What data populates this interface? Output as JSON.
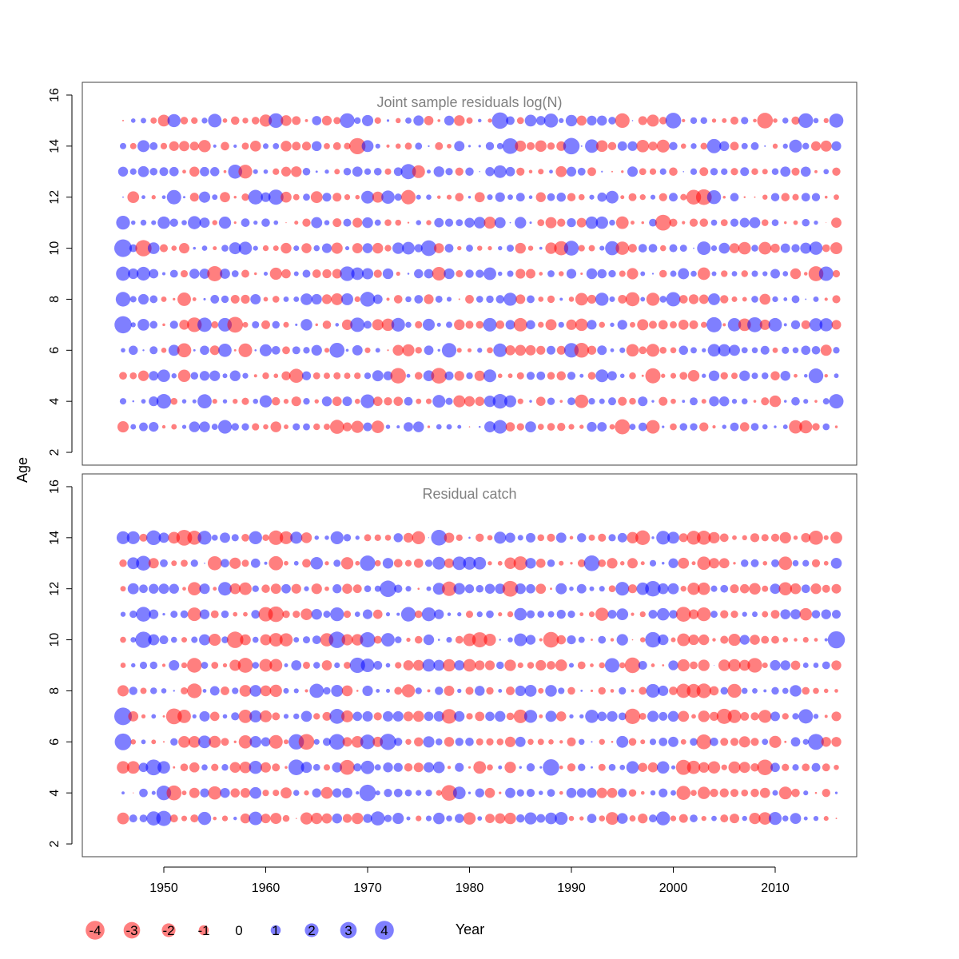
{
  "chart_data": {
    "type": "scatter",
    "subtype": "residual bubble plot",
    "xlabel": "Year",
    "ylabel": "Age",
    "xlim": [
      1942,
      2018
    ],
    "x_ticks": [
      1950,
      1960,
      1970,
      1980,
      1990,
      2000,
      2010
    ],
    "ylim": [
      1.5,
      16.5
    ],
    "y_ticks": [
      2,
      4,
      6,
      8,
      10,
      12,
      14,
      16
    ],
    "colors": {
      "positive": "#0000ff",
      "negative": "#ff0000",
      "opacity": 0.5
    },
    "panels": [
      {
        "title": "Joint sample residuals log(N)",
        "years": [
          1946,
          2016
        ],
        "ages": [
          3,
          4,
          5,
          6,
          7,
          8,
          9,
          10,
          11,
          12,
          13,
          14,
          15
        ],
        "sample_points": [
          {
            "year": 1946,
            "age": 10,
            "residual": 3.8
          },
          {
            "year": 1946,
            "age": 7,
            "residual": 3.6
          },
          {
            "year": 1946,
            "age": 8,
            "residual": 2.6
          },
          {
            "year": 1946,
            "age": 9,
            "residual": 2.4
          },
          {
            "year": 1946,
            "age": 11,
            "residual": 2.3
          },
          {
            "year": 1946,
            "age": 3,
            "residual": -1.5
          },
          {
            "year": 1948,
            "age": 10,
            "residual": -3.2
          },
          {
            "year": 1950,
            "age": 4,
            "residual": 2.6
          },
          {
            "year": 1952,
            "age": 6,
            "residual": -2.4
          },
          {
            "year": 1953,
            "age": 7,
            "residual": -2.6
          },
          {
            "year": 1955,
            "age": 9,
            "residual": -2.8
          },
          {
            "year": 1957,
            "age": 7,
            "residual": -3.0
          },
          {
            "year": 1958,
            "age": 13,
            "residual": -2.3
          },
          {
            "year": 1959,
            "age": 12,
            "residual": 2.6
          },
          {
            "year": 1961,
            "age": 12,
            "residual": 2.8
          },
          {
            "year": 1963,
            "age": 5,
            "residual": -2.4
          },
          {
            "year": 1967,
            "age": 6,
            "residual": 2.7
          },
          {
            "year": 1967,
            "age": 3,
            "residual": -2.4
          },
          {
            "year": 1968,
            "age": 9,
            "residual": 2.6
          },
          {
            "year": 1968,
            "age": 15,
            "residual": 2.6
          },
          {
            "year": 1969,
            "age": 14,
            "residual": -3.2
          },
          {
            "year": 1974,
            "age": 13,
            "residual": 2.8
          },
          {
            "year": 1977,
            "age": 5,
            "residual": -3.0
          },
          {
            "year": 1983,
            "age": 4,
            "residual": 2.6
          },
          {
            "year": 1984,
            "age": 14,
            "residual": 3.0
          },
          {
            "year": 1992,
            "age": 14,
            "residual": 2.2
          },
          {
            "year": 1998,
            "age": 5,
            "residual": -2.8
          },
          {
            "year": 2000,
            "age": 15,
            "residual": 3.0
          },
          {
            "year": 2003,
            "age": 12,
            "residual": -3.0
          },
          {
            "year": 2004,
            "age": 7,
            "residual": 2.8
          },
          {
            "year": 2009,
            "age": 15,
            "residual": -3.0
          },
          {
            "year": 2013,
            "age": 15,
            "residual": 2.6
          },
          {
            "year": 2014,
            "age": 5,
            "residual": 2.6
          },
          {
            "year": 2015,
            "age": 9,
            "residual": 2.5
          },
          {
            "year": 2016,
            "age": 4,
            "residual": 2.5
          },
          {
            "year": 2016,
            "age": 15,
            "residual": 2.4
          }
        ]
      },
      {
        "title": "Residual catch",
        "years": [
          1946,
          2016
        ],
        "ages": [
          3,
          4,
          5,
          6,
          7,
          8,
          9,
          10,
          11,
          12,
          13,
          14
        ],
        "sample_points": [
          {
            "year": 1946,
            "age": 7,
            "residual": 3.8
          },
          {
            "year": 1946,
            "age": 6,
            "residual": 3.4
          },
          {
            "year": 1946,
            "age": 14,
            "residual": 2.0
          },
          {
            "year": 1950,
            "age": 3,
            "residual": 2.8
          },
          {
            "year": 1950,
            "age": 4,
            "residual": 2.6
          },
          {
            "year": 1955,
            "age": 13,
            "residual": -2.4
          },
          {
            "year": 1962,
            "age": 14,
            "residual": -2.0
          },
          {
            "year": 1963,
            "age": 5,
            "residual": 3.0
          },
          {
            "year": 1964,
            "age": 6,
            "residual": -3.0
          },
          {
            "year": 1971,
            "age": 3,
            "residual": 2.4
          },
          {
            "year": 1977,
            "age": 14,
            "residual": 3.0
          },
          {
            "year": 1978,
            "age": 4,
            "residual": -3.0
          },
          {
            "year": 1981,
            "age": 10,
            "residual": -2.8
          },
          {
            "year": 1988,
            "age": 10,
            "residual": -3.0
          },
          {
            "year": 1989,
            "age": 3,
            "residual": 2.0
          },
          {
            "year": 1992,
            "age": 13,
            "residual": 3.0
          },
          {
            "year": 1997,
            "age": 14,
            "residual": -2.6
          },
          {
            "year": 2005,
            "age": 7,
            "residual": -2.8
          },
          {
            "year": 2008,
            "age": 9,
            "residual": -2.6
          },
          {
            "year": 2014,
            "age": 14,
            "residual": -2.4
          },
          {
            "year": 2016,
            "age": 10,
            "residual": 3.6
          }
        ]
      }
    ],
    "legend": {
      "placement": "bottom-left",
      "entries": [
        {
          "value": -4,
          "label": "-4"
        },
        {
          "value": -3,
          "label": "-3"
        },
        {
          "value": -2,
          "label": "-2"
        },
        {
          "value": -1,
          "label": "-1"
        },
        {
          "value": 0,
          "label": "0"
        },
        {
          "value": 1,
          "label": "1"
        },
        {
          "value": 2,
          "label": "2"
        },
        {
          "value": 3,
          "label": "3"
        },
        {
          "value": 4,
          "label": "4"
        }
      ]
    }
  }
}
